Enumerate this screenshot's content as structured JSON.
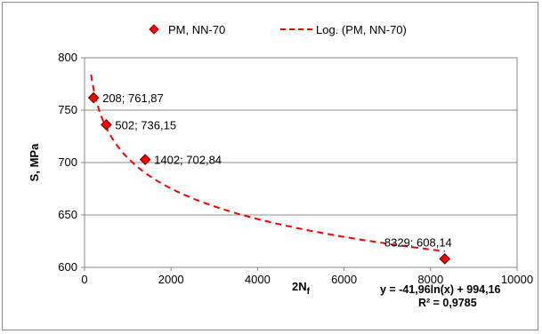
{
  "chart_data": {
    "type": "scatter",
    "xlabel": "2N",
    "xlabel_sub": "f",
    "ylabel": "S, MPa",
    "xlim": [
      0,
      10000
    ],
    "ylim": [
      600,
      800
    ],
    "x_ticks": [
      "0",
      "2000",
      "4000",
      "6000",
      "8000",
      "10000"
    ],
    "y_ticks": [
      "800",
      "750",
      "700",
      "650",
      "600"
    ],
    "grid": true,
    "legend_position": "top",
    "series": [
      {
        "name": "PM, NN-70",
        "marker": "diamond",
        "color": "#ff0000",
        "points": [
          {
            "x": 208,
            "y": 761.87,
            "label": "208; 761,87"
          },
          {
            "x": 502,
            "y": 736.15,
            "label": "502; 736,15"
          },
          {
            "x": 1402,
            "y": 702.84,
            "label": "1402; 702,84"
          },
          {
            "x": 8329,
            "y": 608.14,
            "label": "8329; 608,14"
          }
        ]
      }
    ],
    "trendline": {
      "name": "Log. (PM, NN-70)",
      "kind": "logarithmic",
      "a": -41.96,
      "b": 994.16,
      "x_from": 150,
      "x_to": 8329,
      "color": "#ff0000",
      "equation_text": "y = -41,96ln(x) + 994,16",
      "r2_text": "R² = 0,9785"
    }
  }
}
